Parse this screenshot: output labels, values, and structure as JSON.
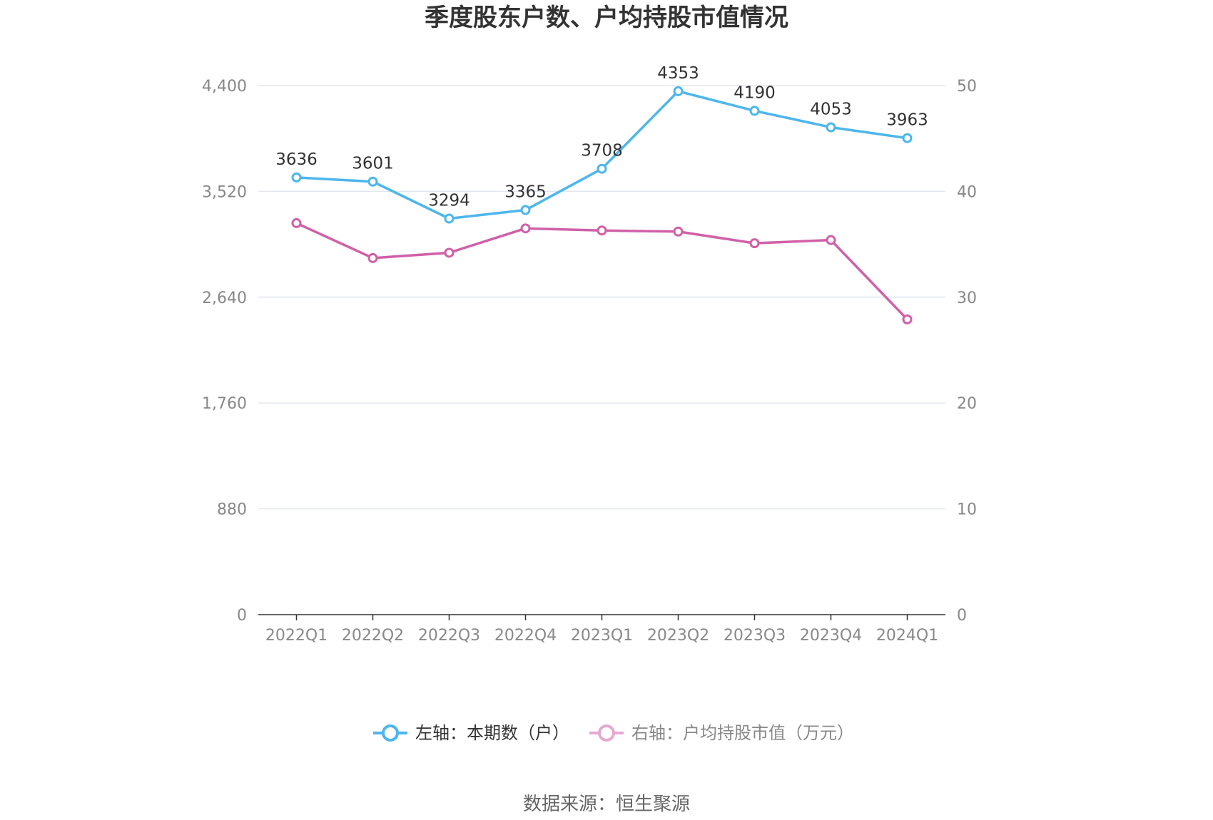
{
  "chart_data": {
    "type": "line",
    "title": "季度股东户数、户均持股市值情况",
    "categories": [
      "2022Q1",
      "2022Q2",
      "2022Q3",
      "2022Q4",
      "2023Q1",
      "2023Q2",
      "2023Q3",
      "2023Q4",
      "2024Q1"
    ],
    "series": [
      {
        "name": "左轴：本期数（户）",
        "axis": "left",
        "color": "#4db6ec",
        "values": [
          3636,
          3601,
          3294,
          3365,
          3708,
          4353,
          4190,
          4053,
          3963
        ],
        "show_data_labels": true
      },
      {
        "name": "右轴：户均持股市值（万元）",
        "axis": "right",
        "color": "#d060a8",
        "values": [
          37.0,
          33.7,
          34.2,
          36.5,
          36.3,
          36.2,
          35.1,
          35.4,
          27.9
        ],
        "show_data_labels": false
      }
    ],
    "y_left": {
      "ticks": [
        0,
        880,
        1760,
        2640,
        3520,
        4400
      ],
      "tick_labels": [
        "0",
        "880",
        "1,760",
        "2,640",
        "3,520",
        "4,400"
      ],
      "ylim": [
        0,
        4400
      ]
    },
    "y_right": {
      "ticks": [
        0,
        10,
        20,
        30,
        40,
        50
      ],
      "tick_labels": [
        "0",
        "10",
        "20",
        "30",
        "40",
        "50"
      ],
      "ylim": [
        0,
        50
      ]
    },
    "grid": true,
    "legend_position": "bottom"
  },
  "footer": {
    "source": "数据来源：恒生聚源"
  },
  "colors": {
    "grid": "#e2e6ee",
    "axis": "#333333",
    "tick_text": "#888888",
    "legend_left_text": "#333333",
    "legend_right_text": "#888888",
    "legend_right_icon": "#e6a8d0"
  }
}
